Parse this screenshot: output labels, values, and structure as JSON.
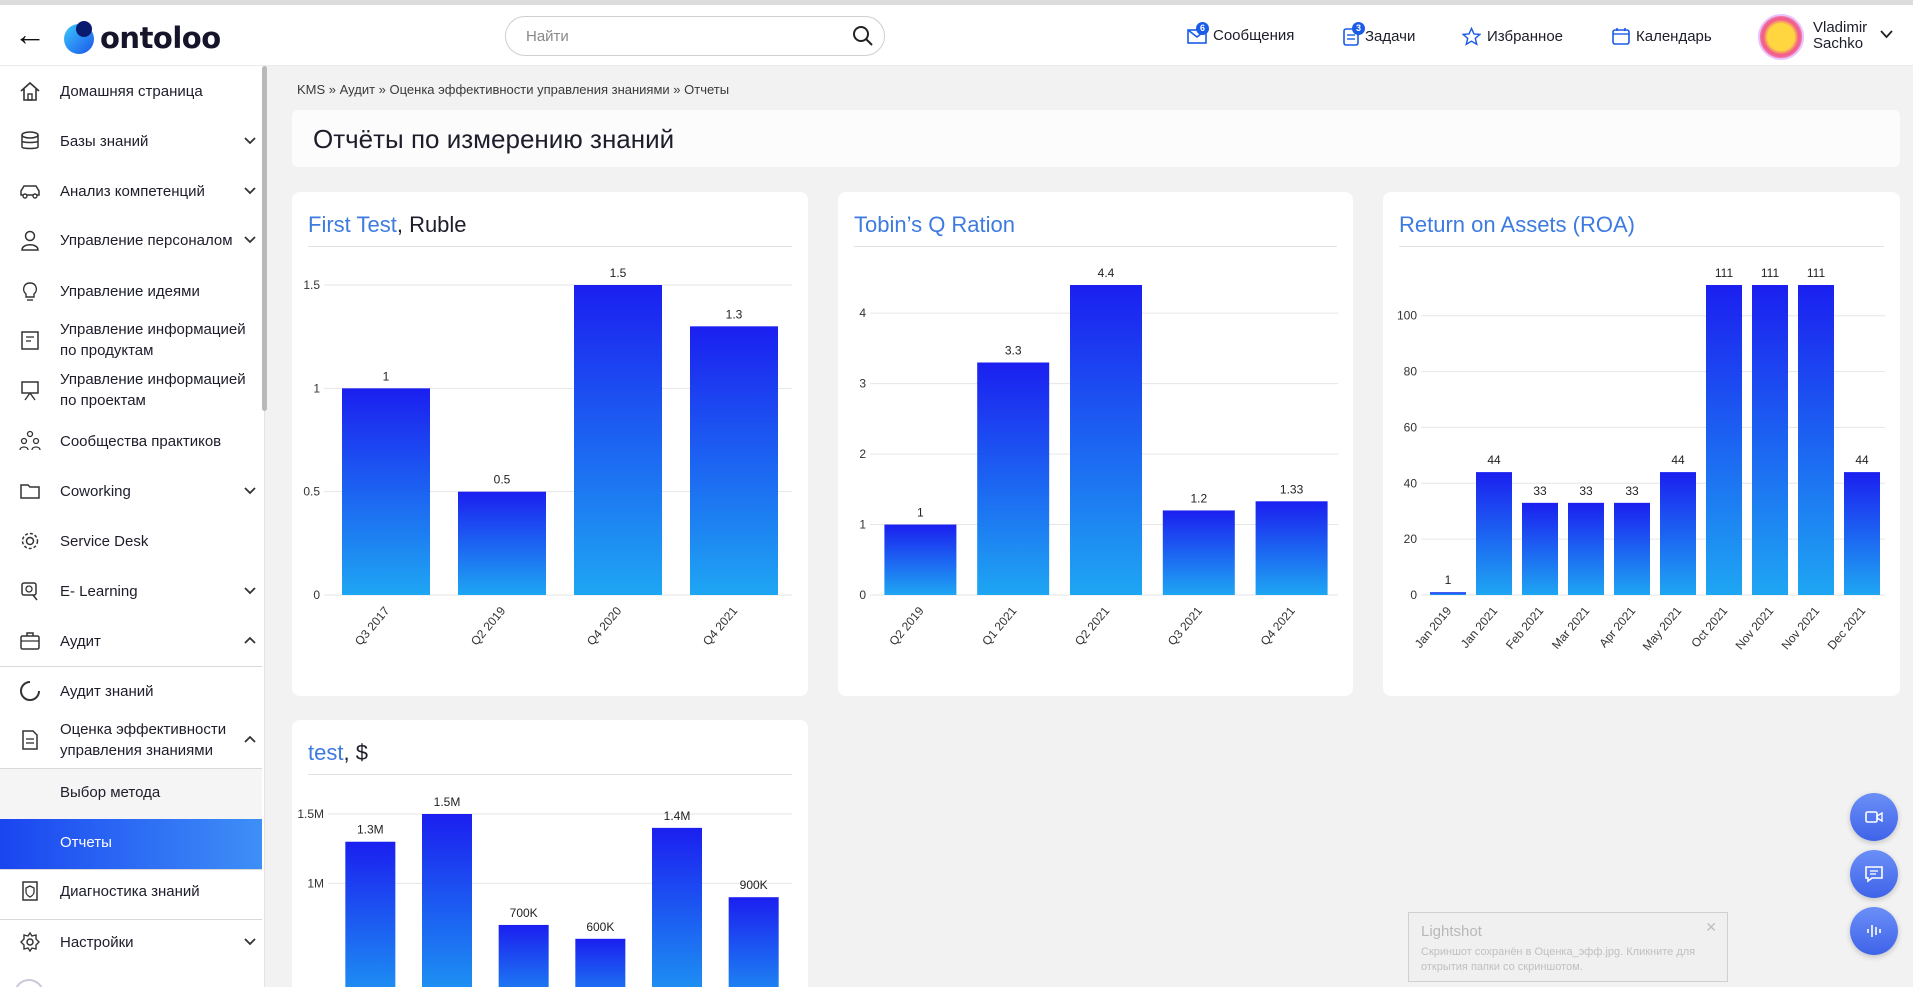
{
  "header": {
    "logo_text": "ontoloo",
    "search_placeholder": "Найти",
    "nav": [
      {
        "label": "Сообщения",
        "badge": "6",
        "icon": "envelope-icon"
      },
      {
        "label": "Задачи",
        "badge": "3",
        "icon": "tasks-icon"
      },
      {
        "label": "Избранное",
        "icon": "star-icon"
      },
      {
        "label": "Календарь",
        "icon": "calendar-icon"
      }
    ],
    "user": {
      "first": "Vladimir",
      "last": "Sachko"
    }
  },
  "sidebar": {
    "items": [
      {
        "label": "Домашняя страница",
        "icon": "home-icon",
        "chevron": "none"
      },
      {
        "label": "Базы знаний",
        "icon": "database-icon",
        "chevron": "down"
      },
      {
        "label": "Анализ компетенций",
        "icon": "car-icon",
        "chevron": "down"
      },
      {
        "label": "Управление персоналом",
        "icon": "person-icon",
        "chevron": "down"
      },
      {
        "label": "Управление идеями",
        "icon": "bulb-icon",
        "chevron": "none"
      },
      {
        "label": "Управление информацией по продуктам",
        "icon": "product-icon",
        "chevron": "none"
      },
      {
        "label": "Управление информацией по проектам",
        "icon": "project-icon",
        "chevron": "none"
      },
      {
        "label": "Сообщества практиков",
        "icon": "community-icon",
        "chevron": "none"
      },
      {
        "label": "Coworking",
        "icon": "folder-icon",
        "chevron": "down"
      },
      {
        "label": "Service Desk",
        "icon": "gear-icon",
        "chevron": "none"
      },
      {
        "label": "E- Learning",
        "icon": "elearning-icon",
        "chevron": "down"
      },
      {
        "label": "Аудит",
        "icon": "briefcase-icon",
        "chevron": "up"
      },
      {
        "label": "Аудит знаний",
        "icon": "circle-progress-icon",
        "chevron": "none"
      },
      {
        "label": "Оценка эффективности управления знаниями",
        "icon": "document-check-icon",
        "chevron": "up"
      }
    ],
    "sub_items": [
      {
        "label": "Выбор метода"
      },
      {
        "label": "Отчеты"
      }
    ],
    "bottom_items": [
      {
        "label": "Диагностика знаний",
        "icon": "shield-doc-icon"
      },
      {
        "label": "Настройки",
        "icon": "gear-settings-icon"
      }
    ]
  },
  "breadcrumb": [
    "KMS",
    "Аудит",
    "Оценка эффективности управления знаниями",
    "Отчеты"
  ],
  "page_title": "Отчёты по измерению знаний",
  "chart_data": [
    {
      "type": "bar",
      "title": "First Test",
      "unit": "Ruble",
      "categories": [
        "Q3 2017",
        "Q2 2019",
        "Q4 2020",
        "Q4 2021"
      ],
      "values": [
        1,
        0.5,
        1.5,
        1.3
      ],
      "labels": [
        "1",
        "0.5",
        "1.5",
        "1.3"
      ],
      "yticks": [
        "0",
        "0.5",
        "1",
        "1.5"
      ],
      "ylim": [
        0,
        1.5
      ],
      "grid": true
    },
    {
      "type": "bar",
      "title": "Tobin’s Q Ration",
      "categories": [
        "Q2 2019",
        "Q1 2021",
        "Q2 2021",
        "Q3 2021",
        "Q4 2021"
      ],
      "values": [
        1,
        3.3,
        4.4,
        1.2,
        1.33
      ],
      "labels": [
        "1",
        "3.3",
        "4.4",
        "1.2",
        "1.33"
      ],
      "yticks": [
        "0",
        "1",
        "2",
        "3",
        "4"
      ],
      "ylim": [
        0,
        4.4
      ],
      "grid": true
    },
    {
      "type": "bar",
      "title": "Return on Assets (ROA)",
      "categories": [
        "Jan 2019",
        "Jan 2021",
        "Feb 2021",
        "Mar 2021",
        "Apr 2021",
        "May 2021",
        "Oct 2021",
        "Nov 2021",
        "Nov 2021",
        "Dec 2021"
      ],
      "values": [
        1,
        44,
        33,
        33,
        33,
        44,
        111,
        111,
        111,
        44
      ],
      "labels": [
        "1",
        "44",
        "33",
        "33",
        "33",
        "44",
        "111",
        "111",
        "111",
        "44"
      ],
      "yticks": [
        "0",
        "20",
        "40",
        "60",
        "80",
        "100"
      ],
      "ylim": [
        0,
        111
      ],
      "grid": true
    },
    {
      "type": "bar",
      "title": "test",
      "unit": "$",
      "values": [
        1300000,
        1500000,
        700000,
        600000,
        1400000,
        900000
      ],
      "labels": [
        "1.3M",
        "1.5M",
        "700K",
        "600K",
        "1.4M",
        "900K"
      ],
      "yticks": [
        "1M",
        "1.5M"
      ],
      "ylim": [
        0,
        1500000
      ],
      "grid": true
    }
  ],
  "fabs": [
    "video-icon",
    "chat-icon",
    "voice-icon"
  ],
  "toast": {
    "title": "Lightshot",
    "text": "Скриншот сохранён в Оценка_эфф.jpg. Кликните для открытия папки со скриншотом."
  }
}
